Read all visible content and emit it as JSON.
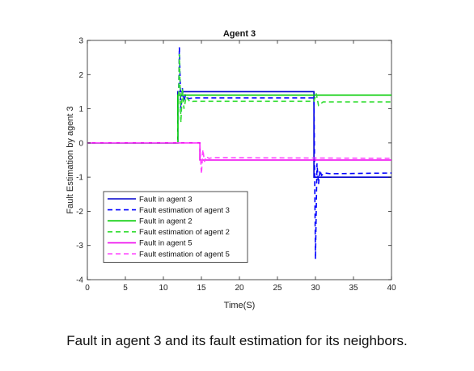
{
  "caption": "Fault in agent 3 and its fault estimation for its neighbors.",
  "chart_data": {
    "type": "line",
    "title": "Agent 3",
    "xlabel": "Time(S)",
    "ylabel": "Fault Estimation by agent 3",
    "xlim": [
      0,
      40
    ],
    "ylim": [
      -4,
      3
    ],
    "xticks": [
      0,
      5,
      10,
      15,
      20,
      25,
      30,
      35,
      40
    ],
    "yticks": [
      -4,
      -3,
      -2,
      -1,
      0,
      1,
      2,
      3
    ],
    "grid": false,
    "legend_position": "lower-left",
    "series": [
      {
        "name": "Fault in agent 3",
        "color": "#0000cc",
        "dash": "solid",
        "x": [
          0,
          11.9,
          11.9,
          29.8,
          29.8,
          40
        ],
        "y": [
          0,
          0,
          1.5,
          1.5,
          -1.0,
          -1.0
        ]
      },
      {
        "name": "Fault estimation of  agent 3",
        "color": "#0000ff",
        "dash": "dashed",
        "x": [
          0,
          11.9,
          12.1,
          12.3,
          12.5,
          12.7,
          12.9,
          13.3,
          14,
          29.8,
          30.0,
          30.2,
          30.4,
          30.6,
          30.8,
          31.2,
          32,
          40
        ],
        "y": [
          0,
          0,
          2.8,
          0.9,
          1.6,
          1.2,
          1.4,
          1.3,
          1.32,
          1.32,
          -3.4,
          -0.6,
          -1.2,
          -0.8,
          -0.95,
          -0.88,
          -0.9,
          -0.88
        ]
      },
      {
        "name": "Fault in agent 2",
        "color": "#00cc00",
        "dash": "solid",
        "x": [
          0,
          11.9,
          11.9,
          29.8,
          29.8,
          40
        ],
        "y": [
          0,
          0,
          1.4,
          1.4,
          1.4,
          1.4
        ]
      },
      {
        "name": "Fault estimation of agent 2",
        "color": "#33dd33",
        "dash": "dashed",
        "x": [
          0,
          11.9,
          12.1,
          12.3,
          12.5,
          12.7,
          13.0,
          13.5,
          14,
          29.8,
          30.1,
          30.4,
          31,
          40
        ],
        "y": [
          0,
          0,
          2.6,
          0.6,
          1.6,
          1.0,
          1.35,
          1.2,
          1.22,
          1.22,
          1.45,
          1.1,
          1.2,
          1.2
        ]
      },
      {
        "name": "Fault in agent 5",
        "color": "#ee00ee",
        "dash": "solid",
        "x": [
          0,
          14.8,
          14.8,
          40
        ],
        "y": [
          0,
          0,
          -0.5,
          -0.5
        ]
      },
      {
        "name": "Fault estimation of agent 5",
        "color": "#ff44ff",
        "dash": "dashed",
        "x": [
          0,
          14.8,
          15.0,
          15.2,
          15.4,
          15.6,
          16.0,
          16.5,
          40
        ],
        "y": [
          0,
          0,
          -0.9,
          -0.2,
          -0.55,
          -0.4,
          -0.45,
          -0.43,
          -0.45
        ]
      }
    ]
  }
}
